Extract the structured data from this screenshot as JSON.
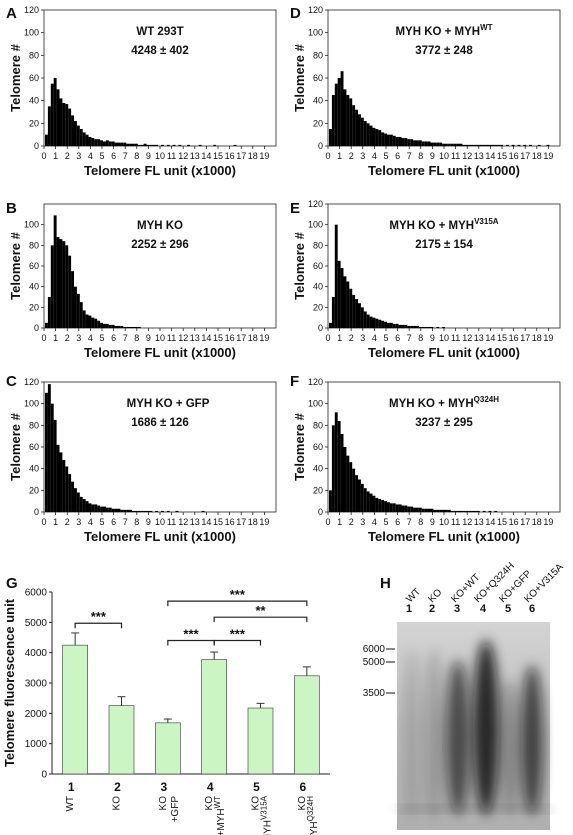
{
  "chart_data": [
    {
      "panel": "A",
      "type": "bar",
      "xlabel": "Telomere FL unit (x1000)",
      "ylabel": "Telomere #",
      "xlim": [
        0,
        20
      ],
      "ylim": [
        0,
        120
      ],
      "yticks": [
        "0",
        "20",
        "40",
        "60",
        "80",
        "100",
        "120"
      ],
      "xticks": [
        "0",
        "1",
        "2",
        "3",
        "4",
        "5",
        "6",
        "7",
        "8",
        "9",
        "10",
        "11",
        "12",
        "13",
        "14",
        "15",
        "16",
        "17",
        "18",
        "19"
      ],
      "title_main": "WT 293T",
      "title_sup": "",
      "stat": "4248 ± 402",
      "values": [
        10,
        35,
        55,
        60,
        50,
        42,
        38,
        37,
        33,
        27,
        22,
        18,
        15,
        12,
        10,
        8,
        7,
        6,
        6,
        5,
        4,
        5,
        4,
        4,
        3,
        3,
        3,
        3,
        2,
        2,
        2,
        2,
        1,
        1,
        2,
        1,
        1,
        1,
        1,
        0,
        1,
        0,
        1,
        0,
        1,
        0,
        1,
        0,
        0,
        1,
        0,
        0,
        0,
        1,
        0,
        0,
        0,
        0,
        1,
        0,
        0,
        0,
        0,
        0,
        0,
        1,
        0,
        0,
        0,
        0,
        0,
        0,
        0,
        0,
        0,
        0,
        0,
        0,
        0,
        0,
        0,
        0,
        0,
        0,
        0,
        0,
        0,
        0,
        0,
        0
      ]
    },
    {
      "panel": "B",
      "type": "bar",
      "xlabel": "Telomere FL unit (x1000)",
      "ylabel": "Telomere #",
      "xlim": [
        0,
        20
      ],
      "ylim": [
        0,
        120
      ],
      "yticks": [
        "0",
        "20",
        "40",
        "60",
        "80",
        "100"
      ],
      "xticks": [
        "0",
        "1",
        "2",
        "3",
        "4",
        "5",
        "6",
        "7",
        "8",
        "9",
        "10",
        "11",
        "12",
        "13",
        "14",
        "15",
        "16",
        "17",
        "18",
        "19"
      ],
      "title_main": "MYH KO",
      "title_sup": "",
      "stat": "2252 ± 296",
      "values": [
        5,
        30,
        80,
        109,
        88,
        86,
        84,
        80,
        70,
        55,
        40,
        33,
        25,
        17,
        13,
        12,
        10,
        9,
        7,
        5,
        4,
        4,
        3,
        3,
        2,
        2,
        2,
        1,
        1,
        1,
        1,
        1,
        1,
        0,
        0,
        0,
        0,
        0,
        0,
        0
      ]
    },
    {
      "panel": "C",
      "type": "bar",
      "xlabel": "Telomere FL unit (x1000)",
      "ylabel": "Telomere #",
      "xlim": [
        0,
        20
      ],
      "ylim": [
        0,
        120
      ],
      "yticks": [
        "0",
        "20",
        "40",
        "60",
        "80",
        "100",
        "120"
      ],
      "xticks": [
        "0",
        "1",
        "2",
        "3",
        "4",
        "5",
        "6",
        "7",
        "8",
        "9",
        "10",
        "11",
        "12",
        "13",
        "14",
        "15",
        "16",
        "17",
        "18",
        "19"
      ],
      "title_main": "MYH KO + GFP",
      "title_sup": "",
      "stat": "1686 ± 126",
      "values": [
        110,
        118,
        100,
        85,
        62,
        55,
        48,
        42,
        35,
        28,
        22,
        18,
        14,
        12,
        10,
        8,
        7,
        7,
        6,
        5,
        5,
        4,
        4,
        3,
        3,
        3,
        2,
        2,
        2,
        2,
        1,
        1,
        1,
        1,
        1,
        1,
        1,
        0,
        1,
        0,
        1,
        0,
        1,
        0,
        0,
        1,
        0,
        0,
        0,
        0,
        0,
        0,
        0,
        0,
        1,
        0,
        0,
        0,
        0,
        0
      ]
    },
    {
      "panel": "D",
      "type": "bar",
      "xlabel": "Telomere FL unit (x1000)",
      "ylabel": "Telomere #",
      "xlim": [
        0,
        20
      ],
      "ylim": [
        0,
        120
      ],
      "yticks": [
        "0",
        "20",
        "40",
        "60",
        "80",
        "100",
        "120"
      ],
      "xticks": [
        "0",
        "1",
        "2",
        "3",
        "4",
        "5",
        "6",
        "7",
        "8",
        "9",
        "10",
        "11",
        "12",
        "13",
        "14",
        "15",
        "16",
        "17",
        "18",
        "19"
      ],
      "title_main": "MYH KO + MYH",
      "title_sup": "WT",
      "stat": "3772 ± 248",
      "values": [
        15,
        45,
        55,
        60,
        66,
        50,
        45,
        42,
        36,
        32,
        28,
        25,
        22,
        20,
        18,
        16,
        15,
        14,
        12,
        11,
        10,
        10,
        9,
        8,
        8,
        7,
        7,
        6,
        6,
        5,
        5,
        5,
        4,
        4,
        4,
        3,
        3,
        3,
        3,
        2,
        2,
        2,
        2,
        2,
        2,
        2,
        1,
        1,
        1,
        1,
        1,
        1,
        1,
        1,
        1,
        1,
        1,
        1,
        1,
        1,
        0,
        1,
        0,
        1,
        0,
        1,
        0,
        1,
        0,
        1,
        0,
        0,
        1,
        0,
        0,
        1,
        0,
        0,
        0,
        0
      ]
    },
    {
      "panel": "E",
      "type": "bar",
      "xlabel": "Telomere FL unit (x1000)",
      "ylabel": "Telomere #",
      "xlim": [
        0,
        20
      ],
      "ylim": [
        0,
        120
      ],
      "yticks": [
        "0",
        "20",
        "40",
        "60",
        "80",
        "100",
        "120"
      ],
      "xticks": [
        "0",
        "1",
        "2",
        "3",
        "4",
        "5",
        "6",
        "7",
        "8",
        "9",
        "10",
        "11",
        "12",
        "13",
        "14",
        "15",
        "16",
        "17",
        "18",
        "19"
      ],
      "title_main": "MYH KO + MYH",
      "title_sup": "V315A",
      "stat": "2175 ± 154",
      "values": [
        5,
        30,
        100,
        65,
        58,
        50,
        45,
        38,
        32,
        28,
        24,
        20,
        16,
        13,
        11,
        10,
        9,
        8,
        7,
        6,
        5,
        5,
        4,
        4,
        3,
        3,
        3,
        2,
        2,
        2,
        2,
        1,
        1,
        1,
        1,
        1,
        0,
        1,
        0,
        1,
        0,
        0,
        0,
        0,
        0,
        0,
        0,
        0
      ]
    },
    {
      "panel": "F",
      "type": "bar",
      "xlabel": "Telomere FL unit (x1000)",
      "ylabel": "Telomere #",
      "xlim": [
        0,
        20
      ],
      "ylim": [
        0,
        120
      ],
      "yticks": [
        "0",
        "20",
        "40",
        "60",
        "80",
        "100",
        "120"
      ],
      "xticks": [
        "0",
        "1",
        "2",
        "3",
        "4",
        "5",
        "6",
        "7",
        "8",
        "9",
        "10",
        "11",
        "12",
        "13",
        "14",
        "15",
        "16",
        "17",
        "18",
        "19"
      ],
      "title_main": "MYH KO + MYH",
      "title_sup": "Q324H",
      "stat": "3237 ± 295",
      "values": [
        20,
        80,
        92,
        84,
        72,
        60,
        52,
        46,
        40,
        34,
        30,
        26,
        22,
        19,
        17,
        15,
        13,
        12,
        11,
        10,
        9,
        8,
        8,
        7,
        7,
        6,
        6,
        5,
        5,
        4,
        4,
        4,
        3,
        3,
        3,
        3,
        2,
        2,
        2,
        2,
        2,
        2,
        1,
        1,
        1,
        1,
        1,
        1,
        1,
        1,
        1,
        1,
        0,
        1,
        0,
        1,
        0,
        1,
        0,
        0
      ]
    },
    {
      "panel": "G",
      "type": "bar",
      "ylabel": "Telomere fluorescence unit",
      "ylim": [
        0,
        6000
      ],
      "yticks": [
        "0",
        "1000",
        "2000",
        "3000",
        "4000",
        "5000",
        "6000"
      ],
      "categories": [
        {
          "num": "1",
          "line1": "WT",
          "line2": "",
          "sup": ""
        },
        {
          "num": "2",
          "line1": "KO",
          "line2": "",
          "sup": ""
        },
        {
          "num": "3",
          "line1": "KO",
          "line2": "+GFP",
          "sup": ""
        },
        {
          "num": "4",
          "line1": "KO",
          "line2": "+MYH",
          "sup": "WT"
        },
        {
          "num": "5",
          "line1": "KO",
          "line2": "+MYH",
          "sup": "V315A"
        },
        {
          "num": "6",
          "line1": "KO",
          "line2": "+MYH",
          "sup": "Q324H"
        }
      ],
      "values": [
        4248,
        2252,
        1686,
        3772,
        2175,
        3237
      ],
      "errors": [
        402,
        296,
        126,
        248,
        154,
        295
      ],
      "bar_color": "#ccf5c4",
      "significance": [
        {
          "from": 1,
          "to": 2,
          "label": "***"
        },
        {
          "from": 3,
          "to": 6,
          "label": "***"
        },
        {
          "from": 4,
          "to": 6,
          "label": "**"
        },
        {
          "from": 3,
          "to": 4,
          "label": "***"
        },
        {
          "from": 4,
          "to": 5,
          "label": "***"
        }
      ]
    }
  ],
  "panels": {
    "A": "A",
    "B": "B",
    "C": "C",
    "D": "D",
    "E": "E",
    "F": "F",
    "G": "G",
    "H": "H"
  },
  "blot": {
    "lane_labels": [
      "WT",
      "KO",
      "KO+WT",
      "KO+Q324H",
      "KO+GFP",
      "KO+V315A"
    ],
    "lane_numbers": [
      "1",
      "2",
      "3",
      "4",
      "5",
      "6"
    ],
    "markers": [
      "6000",
      "5000",
      "3500"
    ]
  }
}
